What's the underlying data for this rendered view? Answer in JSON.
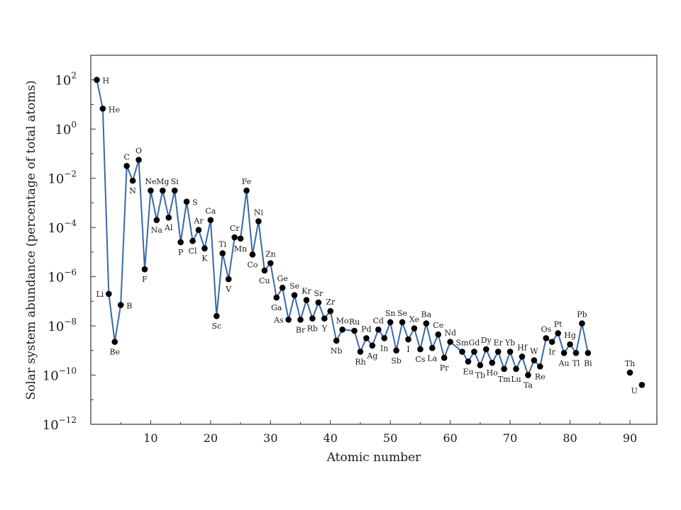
{
  "chart_data": {
    "type": "line",
    "title": "",
    "xlabel": "Atomic number",
    "ylabel": "Solar system abundance (percentage of total atoms)",
    "xlim": [
      0,
      94.5
    ],
    "ylim": [
      -12,
      3
    ],
    "yscale": "log10",
    "grid": false,
    "line_color": "#3a68a8",
    "marker_color": "#000000",
    "x_ticks": [
      10,
      20,
      30,
      40,
      50,
      60,
      70,
      80,
      90
    ],
    "y_ticks": [
      {
        "exp": 2,
        "base": "10",
        "sup": "2"
      },
      {
        "exp": 0,
        "base": "10",
        "sup": "0"
      },
      {
        "exp": -2,
        "base": "10",
        "sup": "−2"
      },
      {
        "exp": -4,
        "base": "10",
        "sup": "−4"
      },
      {
        "exp": -6,
        "base": "10",
        "sup": "−6"
      },
      {
        "exp": -8,
        "base": "10",
        "sup": "−8"
      },
      {
        "exp": -10,
        "base": "10",
        "sup": "−10"
      },
      {
        "exp": -12,
        "base": "10",
        "sup": "−12"
      }
    ],
    "series": [
      {
        "points": [
          {
            "z": 1,
            "sym": "H",
            "log": 2.0,
            "lp": "right"
          },
          {
            "z": 2,
            "sym": "He",
            "log": 0.83,
            "lp": "right"
          },
          {
            "z": 3,
            "sym": "Li",
            "log": -6.7,
            "lp": "left"
          },
          {
            "z": 4,
            "sym": "Be",
            "log": -8.65,
            "lp": "below"
          },
          {
            "z": 5,
            "sym": "B",
            "log": -7.15,
            "lp": "right"
          },
          {
            "z": 6,
            "sym": "C",
            "log": -1.5,
            "lp": "above"
          },
          {
            "z": 7,
            "sym": "N",
            "log": -2.1,
            "lp": "below"
          },
          {
            "z": 8,
            "sym": "O",
            "log": -1.25,
            "lp": "above"
          },
          {
            "z": 9,
            "sym": "F",
            "log": -5.7,
            "lp": "below"
          },
          {
            "z": 10,
            "sym": "Ne",
            "log": -2.5,
            "lp": "above"
          },
          {
            "z": 11,
            "sym": "Na",
            "log": -3.7,
            "lp": "below"
          },
          {
            "z": 12,
            "sym": "Mg",
            "log": -2.5,
            "lp": "above"
          },
          {
            "z": 13,
            "sym": "Al",
            "log": -3.6,
            "lp": "below"
          },
          {
            "z": 14,
            "sym": "Si",
            "log": -2.5,
            "lp": "above"
          },
          {
            "z": 15,
            "sym": "P",
            "log": -4.6,
            "lp": "below"
          },
          {
            "z": 16,
            "sym": "S",
            "log": -2.95,
            "lp": "right"
          },
          {
            "z": 17,
            "sym": "Cl",
            "log": -4.55,
            "lp": "below"
          },
          {
            "z": 18,
            "sym": "Ar",
            "log": -4.1,
            "lp": "above"
          },
          {
            "z": 19,
            "sym": "K",
            "log": -4.85,
            "lp": "below"
          },
          {
            "z": 20,
            "sym": "Ca",
            "log": -3.7,
            "lp": "above"
          },
          {
            "z": 21,
            "sym": "Sc",
            "log": -7.6,
            "lp": "below"
          },
          {
            "z": 22,
            "sym": "Ti",
            "log": -5.05,
            "lp": "above"
          },
          {
            "z": 23,
            "sym": "V",
            "log": -6.1,
            "lp": "below"
          },
          {
            "z": 24,
            "sym": "Cr",
            "log": -4.4,
            "lp": "above"
          },
          {
            "z": 25,
            "sym": "Mn",
            "log": -4.45,
            "lp": "below"
          },
          {
            "z": 26,
            "sym": "Fe",
            "log": -2.5,
            "lp": "above"
          },
          {
            "z": 27,
            "sym": "Co",
            "log": -5.1,
            "lp": "below"
          },
          {
            "z": 28,
            "sym": "Ni",
            "log": -3.75,
            "lp": "above"
          },
          {
            "z": 29,
            "sym": "Cu",
            "log": -5.75,
            "lp": "below"
          },
          {
            "z": 30,
            "sym": "Zn",
            "log": -5.45,
            "lp": "above"
          },
          {
            "z": 31,
            "sym": "Ga",
            "log": -6.85,
            "lp": "below"
          },
          {
            "z": 32,
            "sym": "Ge",
            "log": -6.45,
            "lp": "above"
          },
          {
            "z": 33,
            "sym": "As",
            "log": -7.75,
            "lp": "left"
          },
          {
            "z": 34,
            "sym": "Se",
            "log": -6.75,
            "lp": "above"
          },
          {
            "z": 35,
            "sym": "Br",
            "log": -7.75,
            "lp": "below"
          },
          {
            "z": 36,
            "sym": "Kr",
            "log": -6.95,
            "lp": "above"
          },
          {
            "z": 37,
            "sym": "Rb",
            "log": -7.7,
            "lp": "below"
          },
          {
            "z": 38,
            "sym": "Sr",
            "log": -7.05,
            "lp": "above"
          },
          {
            "z": 39,
            "sym": "Y",
            "log": -7.7,
            "lp": "below"
          },
          {
            "z": 40,
            "sym": "Zr",
            "log": -7.4,
            "lp": "above"
          },
          {
            "z": 41,
            "sym": "Nb",
            "log": -8.6,
            "lp": "below"
          },
          {
            "z": 42,
            "sym": "Mo",
            "log": -8.15,
            "lp": "above"
          },
          {
            "z": 44,
            "sym": "Ru",
            "log": -8.2,
            "lp": "above"
          },
          {
            "z": 45,
            "sym": "Rh",
            "log": -9.05,
            "lp": "below"
          },
          {
            "z": 46,
            "sym": "Pd",
            "log": -8.5,
            "lp": "above"
          },
          {
            "z": 47,
            "sym": "Ag",
            "log": -8.8,
            "lp": "below"
          },
          {
            "z": 48,
            "sym": "Cd",
            "log": -8.15,
            "lp": "above"
          },
          {
            "z": 49,
            "sym": "In",
            "log": -8.5,
            "lp": "below"
          },
          {
            "z": 50,
            "sym": "Sn",
            "log": -7.85,
            "lp": "above"
          },
          {
            "z": 51,
            "sym": "Sb",
            "log": -9.0,
            "lp": "below"
          },
          {
            "z": 52,
            "sym": "Se",
            "log": -7.85,
            "lp": "above"
          },
          {
            "z": 53,
            "sym": "I",
            "log": -8.55,
            "lp": "below"
          },
          {
            "z": 54,
            "sym": "Xe",
            "log": -8.1,
            "lp": "above"
          },
          {
            "z": 55,
            "sym": "Cs",
            "log": -8.95,
            "lp": "below"
          },
          {
            "z": 56,
            "sym": "Ba",
            "log": -7.9,
            "lp": "above"
          },
          {
            "z": 57,
            "sym": "La",
            "log": -8.9,
            "lp": "below"
          },
          {
            "z": 58,
            "sym": "Ce",
            "log": -8.35,
            "lp": "above"
          },
          {
            "z": 59,
            "sym": "Pr",
            "log": -9.3,
            "lp": "below"
          },
          {
            "z": 60,
            "sym": "Nd",
            "log": -8.65,
            "lp": "above"
          },
          {
            "z": 62,
            "sym": "Sm",
            "log": -9.05,
            "lp": "above"
          },
          {
            "z": 63,
            "sym": "Eu",
            "log": -9.45,
            "lp": "below"
          },
          {
            "z": 64,
            "sym": "Gd",
            "log": -9.05,
            "lp": "above"
          },
          {
            "z": 65,
            "sym": "Tb",
            "log": -9.6,
            "lp": "below"
          },
          {
            "z": 66,
            "sym": "Dy",
            "log": -8.95,
            "lp": "above"
          },
          {
            "z": 67,
            "sym": "Ho",
            "log": -9.5,
            "lp": "below"
          },
          {
            "z": 68,
            "sym": "Er",
            "log": -9.05,
            "lp": "above"
          },
          {
            "z": 69,
            "sym": "Tm",
            "log": -9.75,
            "lp": "below"
          },
          {
            "z": 70,
            "sym": "Yb",
            "log": -9.05,
            "lp": "above"
          },
          {
            "z": 71,
            "sym": "Lu",
            "log": -9.75,
            "lp": "below"
          },
          {
            "z": 72,
            "sym": "Hf",
            "log": -9.25,
            "lp": "above"
          },
          {
            "z": 73,
            "sym": "Ta",
            "log": -10.0,
            "lp": "below"
          },
          {
            "z": 74,
            "sym": "W",
            "log": -9.4,
            "lp": "above"
          },
          {
            "z": 75,
            "sym": "Re",
            "log": -9.65,
            "lp": "below"
          },
          {
            "z": 76,
            "sym": "Os",
            "log": -8.5,
            "lp": "above"
          },
          {
            "z": 77,
            "sym": "Ir",
            "log": -8.65,
            "lp": "below"
          },
          {
            "z": 78,
            "sym": "Pt",
            "log": -8.3,
            "lp": "above"
          },
          {
            "z": 79,
            "sym": "Au",
            "log": -9.1,
            "lp": "below"
          },
          {
            "z": 80,
            "sym": "Hg",
            "log": -8.75,
            "lp": "above"
          },
          {
            "z": 81,
            "sym": "Tl",
            "log": -9.1,
            "lp": "below"
          },
          {
            "z": 82,
            "sym": "Pb",
            "log": -7.9,
            "lp": "above"
          },
          {
            "z": 83,
            "sym": "Bi",
            "log": -9.1,
            "lp": "below"
          }
        ]
      },
      {
        "points": [
          {
            "z": 90,
            "sym": "Th",
            "log": -9.9,
            "lp": "above"
          }
        ]
      },
      {
        "points": [
          {
            "z": 92,
            "sym": "U",
            "log": -10.4,
            "lp": "belowleft"
          }
        ]
      }
    ]
  }
}
